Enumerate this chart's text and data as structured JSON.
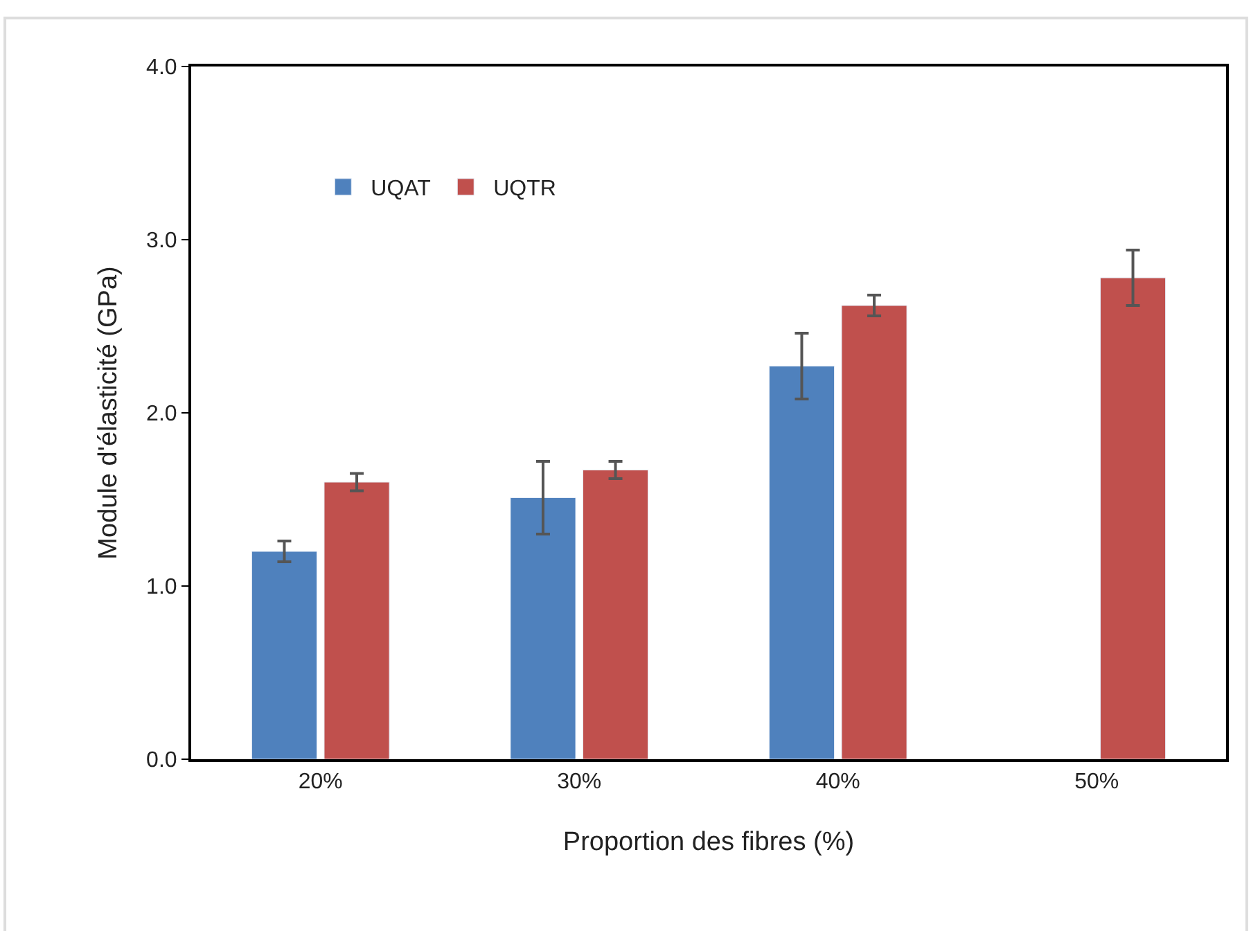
{
  "chart_data": {
    "type": "bar",
    "xlabel": "Proportion des fibres (%)",
    "ylabel": "Module d'élasticité (GPa)",
    "categories": [
      "20%",
      "30%",
      "40%",
      "50%"
    ],
    "series": [
      {
        "name": "UQAT",
        "color": "#4f81bd",
        "values": [
          1.2,
          1.51,
          2.27,
          null
        ],
        "errors": [
          0.06,
          0.21,
          0.19,
          null
        ]
      },
      {
        "name": "UQTR",
        "color": "#c0504d",
        "values": [
          1.6,
          1.67,
          2.62,
          2.78
        ],
        "errors": [
          0.05,
          0.05,
          0.06,
          0.16
        ]
      }
    ],
    "ylim": [
      0,
      4
    ],
    "yticks": [
      {
        "value": 0,
        "label": "0.0"
      },
      {
        "value": 1,
        "label": "1.0"
      },
      {
        "value": 2,
        "label": "2.0"
      },
      {
        "value": 3,
        "label": "3.0"
      },
      {
        "value": 4,
        "label": "4.0"
      }
    ],
    "legend": "top left"
  }
}
